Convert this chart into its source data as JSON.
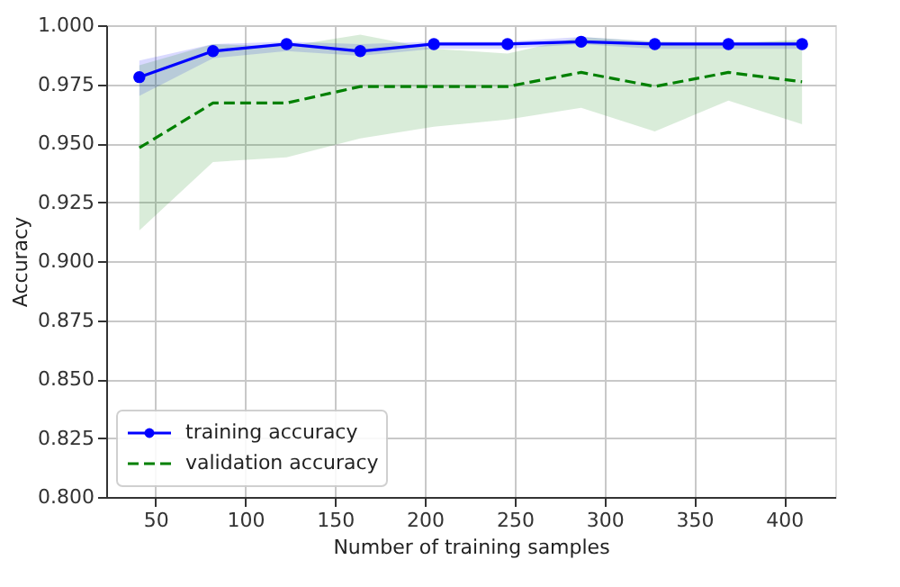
{
  "chart_data": {
    "type": "line",
    "xlabel": "Number of training samples",
    "ylabel": "Accuracy",
    "x": [
      41,
      82,
      123,
      164,
      205,
      246,
      287,
      328,
      369,
      410
    ],
    "series": [
      {
        "name": "training accuracy",
        "color": "#0000ff",
        "marker": "circle",
        "line_style": "solid",
        "values": [
          0.978,
          0.989,
          0.992,
          0.989,
          0.992,
          0.992,
          0.993,
          0.992,
          0.992,
          0.992
        ],
        "lower": [
          0.97,
          0.986,
          0.989,
          0.987,
          0.99,
          0.99,
          0.992,
          0.99,
          0.99,
          0.99
        ],
        "upper": [
          0.985,
          0.992,
          0.993,
          0.992,
          0.993,
          0.993,
          0.995,
          0.993,
          0.993,
          0.993
        ]
      },
      {
        "name": "validation accuracy",
        "color": "#008000",
        "marker": "none",
        "line_style": "dashed",
        "values": [
          0.948,
          0.967,
          0.967,
          0.974,
          0.974,
          0.974,
          0.98,
          0.974,
          0.98,
          0.976
        ],
        "lower": [
          0.913,
          0.942,
          0.944,
          0.952,
          0.957,
          0.96,
          0.965,
          0.955,
          0.968,
          0.958
        ],
        "upper": [
          0.983,
          0.992,
          0.991,
          0.996,
          0.99,
          0.988,
          0.995,
          0.993,
          0.992,
          0.994
        ]
      }
    ],
    "xlim": [
      22.55,
      428.45
    ],
    "xticks": [
      50,
      100,
      150,
      200,
      250,
      300,
      350,
      400
    ],
    "ylim": [
      0.8,
      1.0
    ],
    "yticks": [
      {
        "value": 0.8,
        "label": "0.800"
      },
      {
        "value": 0.825,
        "label": "0.825"
      },
      {
        "value": 0.85,
        "label": "0.850"
      },
      {
        "value": 0.875,
        "label": "0.875"
      },
      {
        "value": 0.9,
        "label": "0.900"
      },
      {
        "value": 0.925,
        "label": "0.925"
      },
      {
        "value": 0.95,
        "label": "0.950"
      },
      {
        "value": 0.975,
        "label": "0.975"
      },
      {
        "value": 1.0,
        "label": "1.000"
      }
    ],
    "grid": true,
    "legend": "bottom left"
  }
}
